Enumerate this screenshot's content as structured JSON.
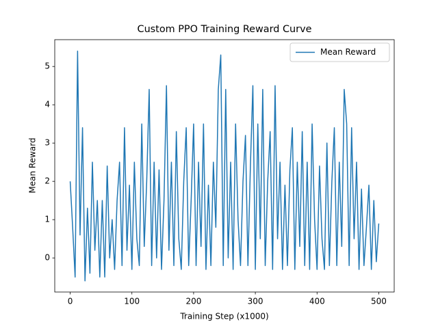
{
  "chart_data": {
    "type": "line",
    "title": "Custom PPO Training Reward Curve",
    "xlabel": "Training Step (x1000)",
    "ylabel": "Mean Reward",
    "x": [
      0,
      4,
      8,
      12,
      16,
      20,
      24,
      28,
      32,
      36,
      40,
      44,
      48,
      52,
      56,
      60,
      64,
      68,
      72,
      76,
      80,
      84,
      88,
      92,
      96,
      100,
      104,
      108,
      112,
      116,
      120,
      124,
      128,
      132,
      136,
      140,
      144,
      148,
      152,
      156,
      160,
      164,
      168,
      172,
      176,
      180,
      184,
      188,
      192,
      196,
      200,
      204,
      208,
      212,
      216,
      220,
      224,
      228,
      232,
      236,
      240,
      244,
      248,
      252,
      256,
      260,
      264,
      268,
      272,
      276,
      280,
      284,
      288,
      292,
      296,
      300,
      304,
      308,
      312,
      316,
      320,
      324,
      328,
      332,
      336,
      340,
      344,
      348,
      352,
      356,
      360,
      364,
      368,
      372,
      376,
      380,
      384,
      388,
      392,
      396,
      400,
      404,
      408,
      412,
      416,
      420,
      424,
      428,
      432,
      436,
      440,
      444,
      448,
      452,
      456,
      460,
      464,
      468,
      472,
      476,
      480,
      484,
      488,
      492,
      496,
      500
    ],
    "series": [
      {
        "name": "Mean Reward",
        "color": "#1f77b4",
        "values": [
          2.0,
          0.8,
          -0.5,
          5.4,
          0.6,
          3.4,
          -0.6,
          1.3,
          -0.4,
          2.5,
          0.2,
          1.5,
          -0.5,
          1.5,
          -0.5,
          2.4,
          0.0,
          1.0,
          -0.3,
          1.5,
          2.5,
          -0.2,
          3.4,
          0.2,
          1.9,
          -0.3,
          2.5,
          0.5,
          -0.2,
          3.5,
          0.3,
          2.0,
          4.4,
          -0.2,
          2.5,
          0.0,
          2.3,
          -0.3,
          1.5,
          4.5,
          0.2,
          2.5,
          -0.2,
          3.3,
          0.5,
          -0.3,
          2.0,
          3.4,
          -0.2,
          1.5,
          3.5,
          -0.2,
          2.5,
          0.3,
          3.5,
          -0.3,
          1.9,
          -0.2,
          2.5,
          0.8,
          4.4,
          5.3,
          -0.2,
          4.4,
          0.0,
          2.5,
          -0.3,
          3.5,
          1.0,
          -0.2,
          2.0,
          3.2,
          -0.2,
          2.4,
          4.5,
          -0.3,
          3.5,
          0.5,
          4.4,
          -0.2,
          2.0,
          3.3,
          -0.3,
          4.5,
          0.5,
          2.5,
          -0.3,
          1.9,
          -0.2,
          2.3,
          3.4,
          -0.3,
          2.5,
          0.3,
          3.3,
          -0.2,
          2.5,
          -0.3,
          3.5,
          1.0,
          -0.3,
          2.4,
          0.5,
          -0.3,
          3.0,
          -0.2,
          2.0,
          3.4,
          -0.2,
          2.5,
          0.3,
          4.4,
          3.5,
          -0.2,
          3.4,
          0.5,
          2.5,
          -0.3,
          1.8,
          -0.2,
          0.8,
          1.9,
          -0.3,
          1.5,
          -0.1,
          0.9
        ]
      }
    ],
    "xlim": [
      -25,
      525
    ],
    "ylim": [
      -0.89,
      5.7
    ],
    "xticks": [
      0,
      100,
      200,
      300,
      400,
      500
    ],
    "yticks": [
      0,
      1,
      2,
      3,
      4,
      5
    ],
    "legend": "upper right"
  }
}
